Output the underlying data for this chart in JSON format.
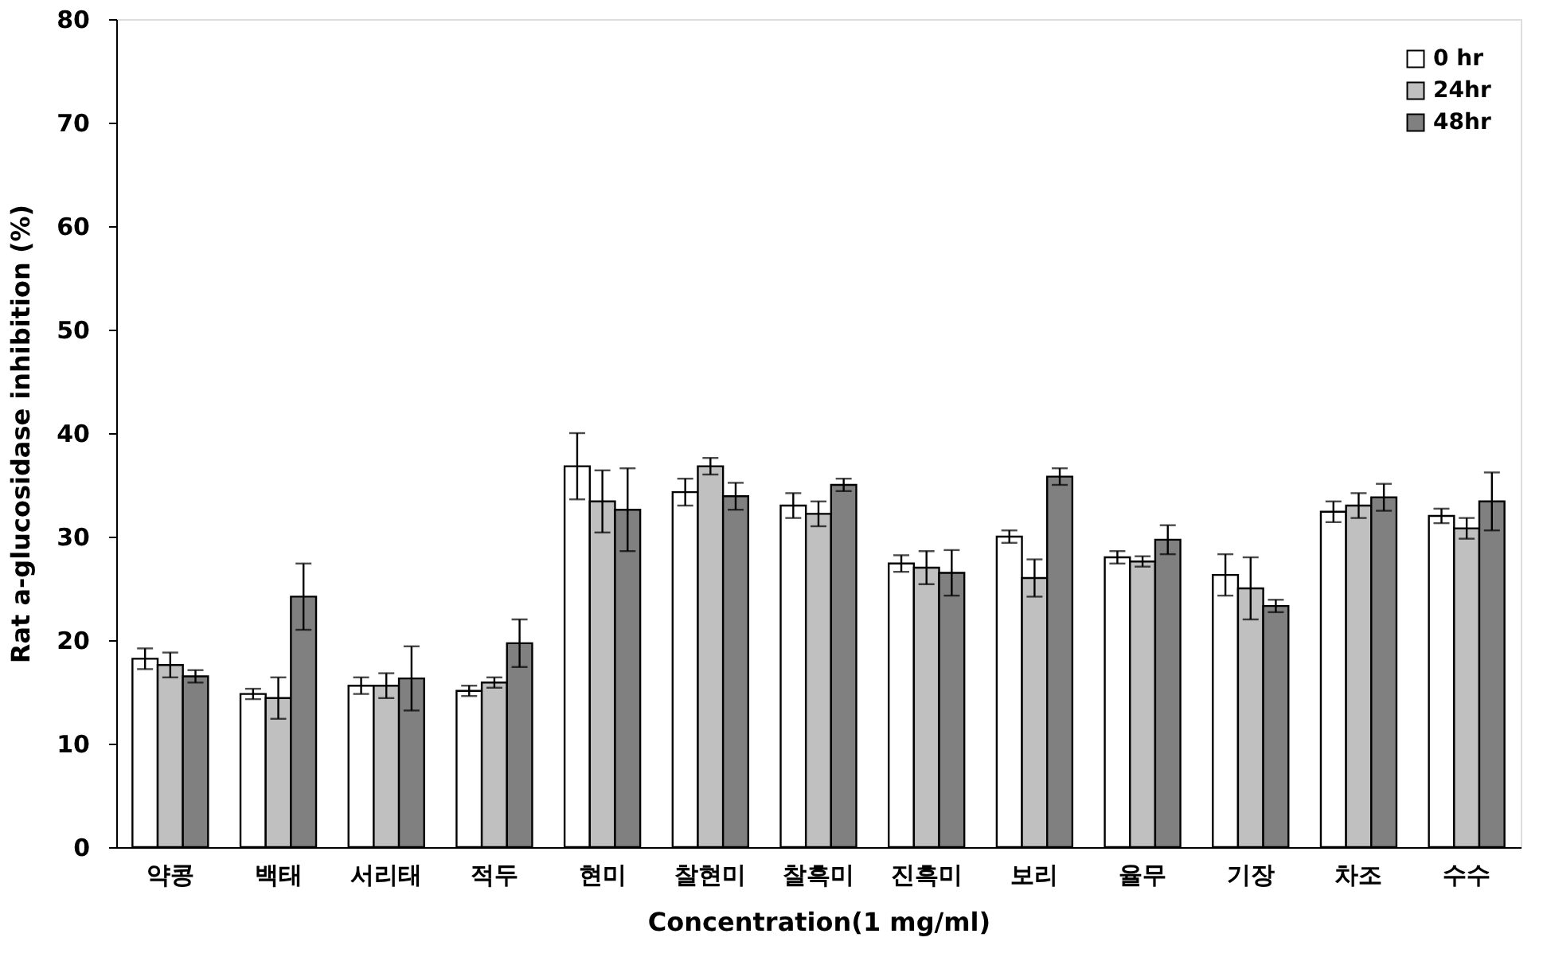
{
  "chart_data": {
    "type": "bar",
    "xlabel": "Concentration(1 mg/ml)",
    "ylabel": "Rat a-glucosidase inhibition (%)",
    "categories": [
      "약콩",
      "백태",
      "서리태",
      "적두",
      "현미",
      "찰현미",
      "찰흑미",
      "진흑미",
      "보리",
      "율무",
      "기장",
      "차조",
      "수수"
    ],
    "series": [
      {
        "name": "0 hr",
        "color": "#ffffff",
        "values": [
          18.2,
          14.8,
          15.6,
          15.1,
          36.8,
          34.3,
          33.0,
          27.4,
          30.0,
          28.0,
          26.3,
          32.4,
          32.0
        ],
        "errors": [
          1.0,
          0.5,
          0.8,
          0.5,
          3.2,
          1.3,
          1.2,
          0.8,
          0.6,
          0.6,
          2.0,
          1.0,
          0.7
        ]
      },
      {
        "name": "24hr",
        "color": "#c0c0c0",
        "values": [
          17.6,
          14.4,
          15.6,
          15.9,
          33.4,
          36.8,
          32.2,
          27.0,
          26.0,
          27.6,
          25.0,
          33.0,
          30.8
        ],
        "errors": [
          1.2,
          2.0,
          1.2,
          0.5,
          3.0,
          0.8,
          1.2,
          1.6,
          1.8,
          0.5,
          3.0,
          1.2,
          1.0
        ]
      },
      {
        "name": "48hr",
        "color": "#808080",
        "values": [
          16.5,
          24.2,
          16.3,
          19.7,
          32.6,
          33.9,
          35.0,
          26.5,
          35.8,
          29.7,
          23.3,
          33.8,
          33.4
        ],
        "errors": [
          0.6,
          3.2,
          3.1,
          2.3,
          4.0,
          1.3,
          0.6,
          2.2,
          0.8,
          1.4,
          0.6,
          1.3,
          2.8
        ]
      }
    ],
    "ylim": [
      0,
      80
    ],
    "yticks": [
      0,
      10,
      20,
      30,
      40,
      50,
      60,
      70,
      80
    ],
    "grid": false,
    "legend": "top right"
  }
}
